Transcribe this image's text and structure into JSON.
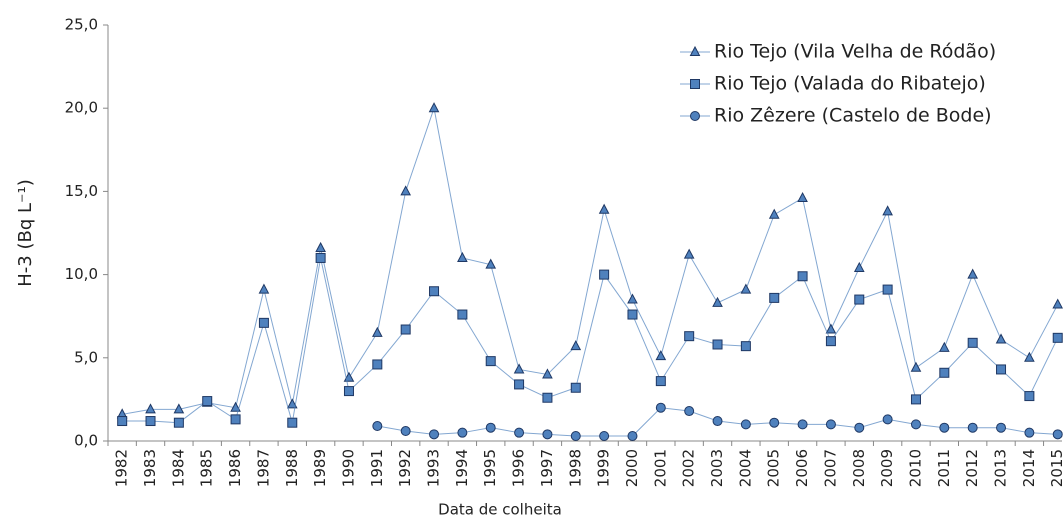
{
  "chart_data": {
    "type": "line",
    "xlabel": "Data de colheita",
    "ylabel": "H-3 (Bq L⁻¹)",
    "categories": [
      "1982",
      "1983",
      "1984",
      "1985",
      "1986",
      "1987",
      "1988",
      "1989",
      "1990",
      "1991",
      "1992",
      "1993",
      "1994",
      "1995",
      "1996",
      "1997",
      "1998",
      "1999",
      "2000",
      "2001",
      "2002",
      "2003",
      "2004",
      "2005",
      "2006",
      "2007",
      "2008",
      "2009",
      "2010",
      "2011",
      "2012",
      "2013",
      "2014",
      "2015"
    ],
    "series": [
      {
        "name": "Rio Tejo (Vila Velha de Ródão)",
        "color": "#4f81bd",
        "marker": "triangle",
        "values": [
          1.6,
          1.9,
          1.9,
          2.3,
          2.0,
          9.1,
          2.2,
          11.6,
          3.8,
          6.5,
          15.0,
          20.0,
          11.0,
          10.6,
          4.3,
          4.0,
          5.7,
          13.9,
          8.5,
          5.1,
          11.2,
          8.3,
          9.1,
          13.6,
          14.6,
          6.7,
          10.4,
          13.8,
          4.4,
          5.6,
          10.0,
          6.1,
          5.0,
          8.2
        ]
      },
      {
        "name": "Rio Tejo (Valada do Ribatejo)",
        "color": "#4f81bd",
        "marker": "square",
        "values": [
          1.2,
          1.2,
          1.1,
          2.4,
          1.3,
          7.1,
          1.1,
          11.0,
          3.0,
          4.6,
          6.7,
          9.0,
          7.6,
          4.8,
          3.4,
          2.6,
          3.2,
          10.0,
          7.6,
          3.6,
          6.3,
          5.8,
          5.7,
          8.6,
          9.9,
          6.0,
          8.5,
          9.1,
          2.5,
          4.1,
          5.9,
          4.3,
          2.7,
          6.2
        ]
      },
      {
        "name": "Rio Zêzere (Castelo de Bode)",
        "color": "#4f81bd",
        "marker": "circle",
        "values": [
          null,
          null,
          null,
          null,
          null,
          null,
          null,
          null,
          null,
          0.9,
          0.6,
          0.4,
          0.5,
          0.8,
          0.5,
          0.4,
          0.3,
          0.3,
          0.3,
          2.0,
          1.8,
          1.2,
          1.0,
          1.1,
          1.0,
          1.0,
          0.8,
          1.3,
          1.0,
          0.8,
          0.8,
          0.8,
          0.5,
          0.4
        ]
      }
    ],
    "ylim": [
      0,
      25
    ],
    "yticks": [
      {
        "value": 0,
        "label": "0,0"
      },
      {
        "value": 5,
        "label": "5,0"
      },
      {
        "value": 10,
        "label": "10,0"
      },
      {
        "value": 15,
        "label": "15,0"
      },
      {
        "value": 20,
        "label": "20,0"
      },
      {
        "value": 25,
        "label": "25,0"
      }
    ],
    "grid": false,
    "legend": "upper right"
  }
}
